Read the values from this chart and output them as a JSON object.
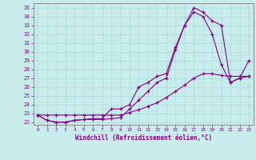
{
  "xlabel": "Windchill (Refroidissement éolien,°C)",
  "background_color": "#c8ecec",
  "grid_color": "#a8d8d8",
  "line_color": "#880088",
  "xlim": [
    -0.5,
    23.5
  ],
  "ylim": [
    21.7,
    35.5
  ],
  "yticks": [
    22,
    23,
    24,
    25,
    26,
    27,
    28,
    29,
    30,
    31,
    32,
    33,
    34,
    35
  ],
  "xticks": [
    0,
    1,
    2,
    3,
    4,
    5,
    6,
    7,
    8,
    9,
    10,
    11,
    12,
    13,
    14,
    15,
    16,
    17,
    18,
    19,
    20,
    21,
    22,
    23
  ],
  "line1_x": [
    0,
    1,
    2,
    3,
    4,
    5,
    6,
    7,
    8,
    9,
    10,
    11,
    12,
    13,
    14,
    15,
    16,
    17,
    18,
    19,
    20,
    21,
    22,
    23
  ],
  "line1_y": [
    22.8,
    22.8,
    22.8,
    22.8,
    22.8,
    22.8,
    22.8,
    22.8,
    22.8,
    22.8,
    23.1,
    23.4,
    23.8,
    24.2,
    24.8,
    25.5,
    26.2,
    27.0,
    27.5,
    27.5,
    27.3,
    27.2,
    27.2,
    27.2
  ],
  "line2_x": [
    0,
    1,
    2,
    3,
    4,
    5,
    6,
    7,
    8,
    9,
    10,
    11,
    12,
    13,
    14,
    15,
    16,
    17,
    18,
    19,
    20,
    21,
    22,
    23
  ],
  "line2_y": [
    22.8,
    22.2,
    22.0,
    22.0,
    22.2,
    22.3,
    22.3,
    22.3,
    22.4,
    22.5,
    23.5,
    24.5,
    25.5,
    26.5,
    27.0,
    30.2,
    33.0,
    34.5,
    34.0,
    32.0,
    28.5,
    26.5,
    27.0,
    27.2
  ],
  "line3_x": [
    0,
    1,
    2,
    3,
    4,
    5,
    6,
    7,
    8,
    9,
    10,
    11,
    12,
    13,
    14,
    15,
    16,
    17,
    18,
    19,
    20,
    21,
    22,
    23
  ],
  "line3_y": [
    22.8,
    22.2,
    22.0,
    22.0,
    22.2,
    22.3,
    22.4,
    22.4,
    23.5,
    23.5,
    24.0,
    26.0,
    26.5,
    27.2,
    27.5,
    30.5,
    33.0,
    35.0,
    34.5,
    33.5,
    33.0,
    26.5,
    27.0,
    29.0
  ]
}
